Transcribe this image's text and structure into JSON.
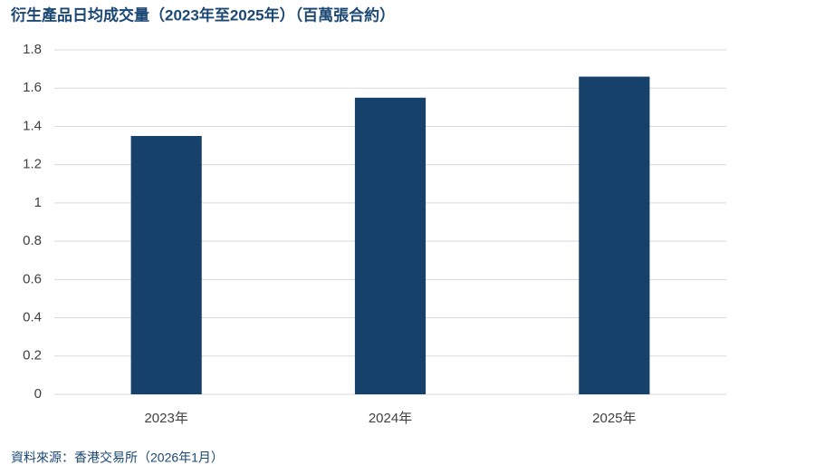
{
  "chart_data": {
    "type": "bar",
    "title": "衍生產品日均成交量（2023年至2025年）（百萬張合約）",
    "categories": [
      "2023年",
      "2024年",
      "2025年"
    ],
    "values": [
      1.35,
      1.55,
      1.66
    ],
    "color": "#15416b",
    "ylim": [
      0,
      1.8
    ],
    "yticks": [
      0,
      0.2,
      0.4,
      0.6,
      0.8,
      1,
      1.2,
      1.4,
      1.6,
      1.8
    ],
    "grid": true,
    "source": "資料來源：香港交易所（2026年1月）"
  }
}
